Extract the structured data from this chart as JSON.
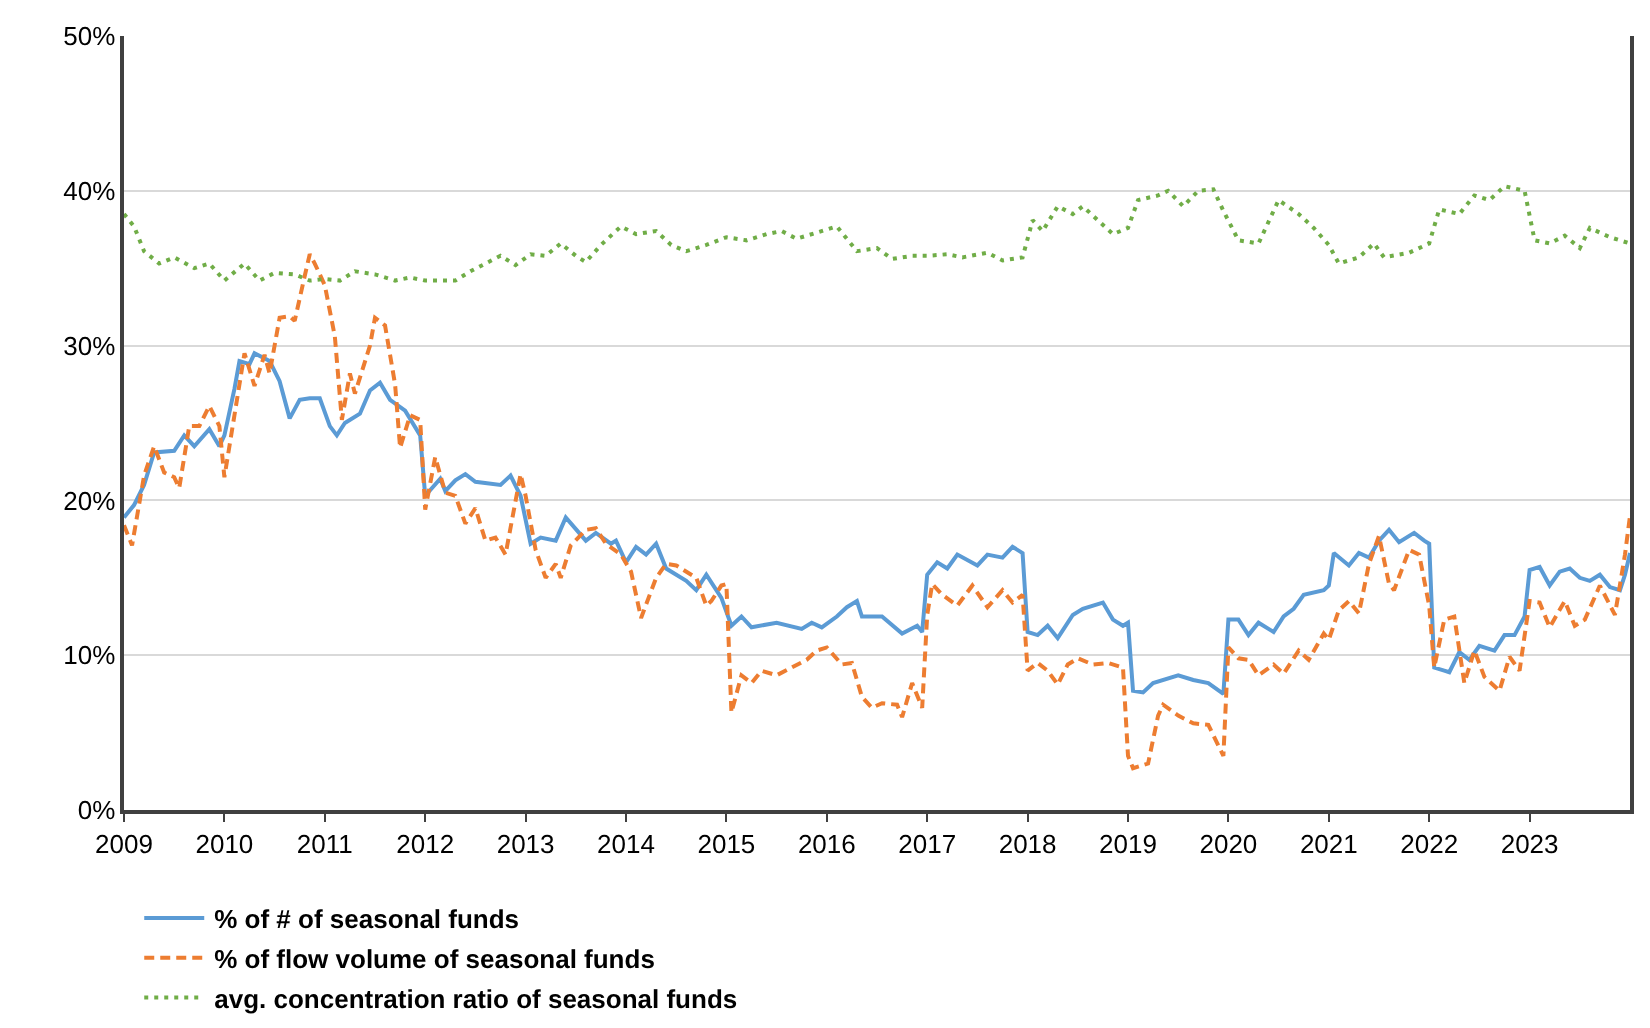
{
  "chart_data": {
    "type": "line",
    "xlim": [
      2009,
      2024
    ],
    "xticks": [
      2009,
      2010,
      2011,
      2012,
      2013,
      2014,
      2015,
      2016,
      2017,
      2018,
      2019,
      2020,
      2021,
      2022,
      2023
    ],
    "ylim": [
      0,
      50
    ],
    "yticks": [
      {
        "value": 0,
        "label": "0%"
      },
      {
        "value": 10,
        "label": "10%"
      },
      {
        "value": 20,
        "label": "20%"
      },
      {
        "value": 30,
        "label": "30%"
      },
      {
        "value": 40,
        "label": "40%"
      },
      {
        "value": 50,
        "label": "50%"
      }
    ],
    "grid": "y",
    "legend": "bottom",
    "series": [
      {
        "name": "% of # of seasonal funds",
        "color": "#5b9bd5",
        "line_style": "solid",
        "x": [
          2009.0,
          2009.1,
          2009.2,
          2009.3,
          2009.5,
          2009.6,
          2009.7,
          2009.85,
          2009.95,
          2010.0,
          2010.1,
          2010.15,
          2010.25,
          2010.3,
          2010.45,
          2010.55,
          2010.65,
          2010.75,
          2010.85,
          2010.95,
          2011.05,
          2011.12,
          2011.2,
          2011.35,
          2011.45,
          2011.55,
          2011.65,
          2011.8,
          2011.95,
          2012.0,
          2012.15,
          2012.2,
          2012.3,
          2012.4,
          2012.5,
          2012.75,
          2012.85,
          2012.95,
          2013.05,
          2013.15,
          2013.3,
          2013.4,
          2013.6,
          2013.7,
          2013.85,
          2013.9,
          2014.0,
          2014.1,
          2014.2,
          2014.3,
          2014.4,
          2014.6,
          2014.7,
          2014.8,
          2014.95,
          2015.05,
          2015.15,
          2015.25,
          2015.5,
          2015.75,
          2015.85,
          2015.95,
          2016.1,
          2016.2,
          2016.3,
          2016.35,
          2016.55,
          2016.75,
          2016.9,
          2016.95,
          2017.0,
          2017.1,
          2017.2,
          2017.3,
          2017.5,
          2017.6,
          2017.75,
          2017.85,
          2017.95,
          2018.0,
          2018.1,
          2018.2,
          2018.3,
          2018.45,
          2018.55,
          2018.75,
          2018.85,
          2018.95,
          2019.0,
          2019.05,
          2019.15,
          2019.25,
          2019.5,
          2019.65,
          2019.8,
          2019.95,
          2020.0,
          2020.1,
          2020.2,
          2020.3,
          2020.45,
          2020.55,
          2020.65,
          2020.75,
          2020.95,
          2021.0,
          2021.05,
          2021.2,
          2021.3,
          2021.4,
          2021.5,
          2021.6,
          2021.7,
          2021.85,
          2021.95,
          2022.0,
          2022.05,
          2022.15,
          2022.2,
          2022.3,
          2022.4,
          2022.5,
          2022.65,
          2022.75,
          2022.85,
          2022.95,
          2023.0,
          2023.1,
          2023.2,
          2023.3,
          2023.4,
          2023.5,
          2023.6,
          2023.7,
          2023.8,
          2023.9,
          2023.95,
          2024.0
        ],
        "values": [
          18.9,
          19.7,
          21,
          23.1,
          23.2,
          24.2,
          23.5,
          24.6,
          23.5,
          24.2,
          27.2,
          29,
          28.8,
          29.5,
          29,
          27.7,
          25.3,
          26.5,
          26.6,
          26.6,
          24.8,
          24.2,
          25,
          25.6,
          27.1,
          27.6,
          26.5,
          25.8,
          24.2,
          20.3,
          21.4,
          20.6,
          21.3,
          21.7,
          21.2,
          21,
          21.6,
          20.3,
          17.2,
          17.6,
          17.4,
          18.9,
          17.4,
          17.9,
          17.2,
          17.4,
          16,
          17,
          16.5,
          17.2,
          15.6,
          14.8,
          14.2,
          15.2,
          13.7,
          11.9,
          12.5,
          11.8,
          12.1,
          11.7,
          12.1,
          11.8,
          12.5,
          13.1,
          13.5,
          12.5,
          12.5,
          11.4,
          11.9,
          11.5,
          15.2,
          16,
          15.6,
          16.5,
          15.8,
          16.5,
          16.3,
          17,
          16.6,
          11.5,
          11.3,
          11.9,
          11.1,
          12.6,
          13,
          13.4,
          12.3,
          11.9,
          12.1,
          7.7,
          7.6,
          8.2,
          8.7,
          8.4,
          8.2,
          7.5,
          12.3,
          12.3,
          11.3,
          12.1,
          11.5,
          12.5,
          13,
          13.9,
          14.2,
          14.5,
          16.6,
          15.8,
          16.6,
          16.3,
          17.4,
          18.1,
          17.3,
          17.9,
          17.4,
          17.2,
          9.2,
          9,
          8.9,
          10.2,
          9.7,
          10.6,
          10.3,
          11.3,
          11.3,
          12.5,
          15.5,
          15.7,
          14.5,
          15.4,
          15.6,
          15,
          14.8,
          15.2,
          14.4,
          14.2,
          15.2,
          16.6
        ]
      },
      {
        "name": "% of flow volume of seasonal funds",
        "color": "#ed7d31",
        "line_style": "dashed",
        "x": [
          2009.0,
          2009.08,
          2009.2,
          2009.3,
          2009.4,
          2009.5,
          2009.55,
          2009.65,
          2009.75,
          2009.85,
          2009.95,
          2010.0,
          2010.1,
          2010.2,
          2010.3,
          2010.4,
          2010.45,
          2010.55,
          2010.65,
          2010.7,
          2010.8,
          2010.85,
          2010.9,
          2011.0,
          2011.1,
          2011.17,
          2011.25,
          2011.3,
          2011.45,
          2011.5,
          2011.6,
          2011.7,
          2011.75,
          2011.85,
          2011.95,
          2012.0,
          2012.1,
          2012.2,
          2012.3,
          2012.4,
          2012.5,
          2012.6,
          2012.7,
          2012.8,
          2012.95,
          2013.0,
          2013.1,
          2013.2,
          2013.3,
          2013.35,
          2013.45,
          2013.6,
          2013.7,
          2013.8,
          2013.95,
          2014.05,
          2014.15,
          2014.3,
          2014.4,
          2014.5,
          2014.7,
          2014.8,
          2014.85,
          2014.95,
          2015.0,
          2015.05,
          2015.15,
          2015.25,
          2015.35,
          2015.5,
          2015.65,
          2015.8,
          2015.9,
          2016.0,
          2016.15,
          2016.25,
          2016.35,
          2016.45,
          2016.55,
          2016.7,
          2016.75,
          2016.85,
          2016.95,
          2017.0,
          2017.05,
          2017.15,
          2017.3,
          2017.45,
          2017.6,
          2017.75,
          2017.85,
          2017.95,
          2018.0,
          2018.1,
          2018.2,
          2018.3,
          2018.4,
          2018.5,
          2018.65,
          2018.8,
          2018.95,
          2019.0,
          2019.05,
          2019.2,
          2019.3,
          2019.35,
          2019.5,
          2019.65,
          2019.8,
          2019.95,
          2020.0,
          2020.1,
          2020.2,
          2020.3,
          2020.45,
          2020.55,
          2020.7,
          2020.8,
          2020.95,
          2021.0,
          2021.1,
          2021.2,
          2021.3,
          2021.4,
          2021.5,
          2021.6,
          2021.65,
          2021.8,
          2021.9,
          2022.0,
          2022.05,
          2022.15,
          2022.25,
          2022.35,
          2022.45,
          2022.55,
          2022.7,
          2022.8,
          2022.9,
          2023.0,
          2023.1,
          2023.2,
          2023.35,
          2023.45,
          2023.55,
          2023.7,
          2023.85,
          2023.95,
          2024.0
        ],
        "values": [
          18.4,
          17.1,
          21.6,
          23.5,
          21.8,
          21.5,
          20.8,
          24.8,
          24.8,
          26.1,
          24.8,
          21.5,
          25.5,
          29.5,
          27.4,
          29.4,
          28.2,
          31.8,
          31.9,
          31.6,
          34.5,
          35.9,
          35.3,
          33.9,
          30.6,
          25.2,
          28.2,
          26.9,
          30,
          31.8,
          31.3,
          27.5,
          23.4,
          25.5,
          25.2,
          19.4,
          22.8,
          20.5,
          20.3,
          18.5,
          19.5,
          17.4,
          17.6,
          16.5,
          21.7,
          20.3,
          16.8,
          15,
          15.9,
          15,
          17.1,
          18.1,
          18.2,
          17.2,
          16.5,
          15.4,
          12.4,
          15,
          15.9,
          15.8,
          15,
          13.2,
          13.5,
          14.5,
          14.6,
          6.3,
          8.7,
          8.2,
          9,
          8.7,
          9.2,
          9.7,
          10.3,
          10.5,
          9.4,
          9.5,
          7.3,
          6.6,
          6.9,
          6.8,
          6,
          8.2,
          6.6,
          12.6,
          14.6,
          13.9,
          13.2,
          14.5,
          13.1,
          14.2,
          13.4,
          13.9,
          9,
          9.5,
          9,
          8.1,
          9.4,
          9.8,
          9.4,
          9.5,
          9.2,
          3.5,
          2.7,
          3,
          6.1,
          6.8,
          6.1,
          5.6,
          5.5,
          3.5,
          10.5,
          9.8,
          9.7,
          8.7,
          9.4,
          8.8,
          10.3,
          9.7,
          11.4,
          11,
          12.9,
          13.5,
          12.7,
          15.9,
          17.7,
          14.6,
          14.2,
          16.8,
          16.5,
          13.2,
          9.2,
          12.3,
          12.5,
          8.2,
          10.3,
          8.6,
          7.7,
          9.9,
          9,
          13.5,
          13.4,
          11.8,
          13.5,
          11.9,
          12.3,
          14.5,
          12.6,
          16.5,
          19
        ]
      },
      {
        "name": "avg. concentration ratio of seasonal funds",
        "color": "#70ad47",
        "line_style": "dotted",
        "x": [
          2009.0,
          2009.1,
          2009.2,
          2009.35,
          2009.5,
          2009.7,
          2009.85,
          2010.0,
          2010.2,
          2010.35,
          2010.5,
          2010.7,
          2010.85,
          2011.0,
          2011.15,
          2011.3,
          2011.5,
          2011.7,
          2011.85,
          2012.0,
          2012.3,
          2012.45,
          2012.6,
          2012.75,
          2012.9,
          2013.05,
          2013.2,
          2013.35,
          2013.5,
          2013.6,
          2013.75,
          2013.95,
          2014.1,
          2014.3,
          2014.45,
          2014.6,
          2014.8,
          2015.0,
          2015.2,
          2015.4,
          2015.55,
          2015.7,
          2015.9,
          2016.1,
          2016.3,
          2016.5,
          2016.65,
          2016.85,
          2017.0,
          2017.2,
          2017.35,
          2017.6,
          2017.75,
          2017.95,
          2018.05,
          2018.15,
          2018.3,
          2018.45,
          2018.55,
          2018.7,
          2018.85,
          2019.0,
          2019.1,
          2019.3,
          2019.4,
          2019.55,
          2019.7,
          2019.85,
          2019.95,
          2020.1,
          2020.3,
          2020.5,
          2020.7,
          2020.85,
          2021.0,
          2021.1,
          2021.3,
          2021.45,
          2021.55,
          2021.8,
          2022.0,
          2022.1,
          2022.3,
          2022.45,
          2022.6,
          2022.75,
          2022.95,
          2023.05,
          2023.2,
          2023.35,
          2023.5,
          2023.6,
          2023.8,
          2024.0
        ],
        "values": [
          38.5,
          37.7,
          36.1,
          35.3,
          35.7,
          35,
          35.3,
          34.2,
          35.3,
          34.2,
          34.7,
          34.6,
          34.2,
          34.3,
          34.2,
          34.8,
          34.6,
          34.2,
          34.4,
          34.2,
          34.2,
          34.8,
          35.3,
          35.8,
          35.2,
          35.9,
          35.8,
          36.6,
          35.8,
          35.4,
          36.5,
          37.7,
          37.2,
          37.4,
          36.5,
          36.1,
          36.5,
          37,
          36.8,
          37.2,
          37.4,
          36.9,
          37.3,
          37.7,
          36.1,
          36.3,
          35.6,
          35.8,
          35.8,
          35.9,
          35.7,
          36,
          35.5,
          35.7,
          38.1,
          37.4,
          39,
          38.5,
          39,
          38.1,
          37.2,
          37.6,
          39.4,
          39.7,
          40,
          39,
          40,
          40.1,
          38.7,
          36.8,
          36.6,
          39.4,
          38.5,
          37.6,
          36.5,
          35.3,
          35.7,
          36.6,
          35.7,
          36,
          36.6,
          38.8,
          38.5,
          39.7,
          39.4,
          40.3,
          40,
          36.8,
          36.6,
          37.1,
          36.3,
          37.6,
          37,
          36.6
        ]
      }
    ]
  }
}
